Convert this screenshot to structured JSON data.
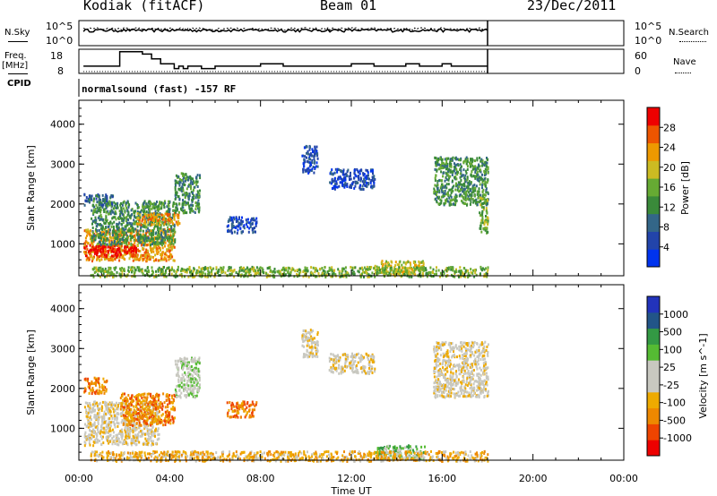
{
  "header": {
    "station": "Kodiak (fitACF)",
    "beam": "Beam 01",
    "date": "23/Dec/2011"
  },
  "side_labels": {
    "nsky": "N.Sky",
    "freq": "Freq.",
    "mhz": "[MHz]",
    "cpid": "CPID",
    "nsearch": "N.Search",
    "nave": "Nave"
  },
  "cpid_text": "normalsound (fast) -157 RF",
  "colors": {
    "power": [
      "#0033ee",
      "#2244aa",
      "#336688",
      "#3a8a3a",
      "#66aa33",
      "#ccbb22",
      "#ee9900",
      "#ee5500",
      "#ee0000"
    ],
    "velocity": [
      "#ee0000",
      "#ee4400",
      "#ee8800",
      "#eeaa00",
      "#c8c8c0",
      "#c8c8c0",
      "#55bb33",
      "#339944",
      "#225588",
      "#2233bb"
    ]
  },
  "chart_data": [
    {
      "type": "line",
      "panel": "noise",
      "left_ticks": [
        "10^5",
        "10^0"
      ],
      "right_ticks": [
        "10^5",
        "10^0"
      ],
      "series": [
        {
          "name": "N.Sky",
          "x": [
            0.2,
            18
          ],
          "y": [
            1000,
            1000
          ]
        },
        {
          "name": "N.Search",
          "x": [
            0.2,
            18
          ],
          "y": [
            2000,
            2000
          ]
        }
      ]
    },
    {
      "type": "line",
      "panel": "frequency",
      "left_ticks": [
        "18",
        "8"
      ],
      "right_ticks": [
        "60",
        "0"
      ],
      "series": [
        {
          "name": "Freq.",
          "x": [
            0.2,
            0.8,
            1.6,
            1.8,
            2.8,
            3.2,
            3.6,
            4.2,
            4.4,
            4.6,
            4.8,
            5.4,
            6,
            7,
            8,
            9,
            10,
            11,
            12,
            13,
            14,
            14.4,
            15,
            16,
            16.4,
            17,
            18
          ],
          "y": [
            11,
            11,
            11,
            17,
            16,
            14,
            12,
            10,
            11,
            10,
            11,
            10,
            11,
            11,
            12,
            11,
            11,
            11,
            12,
            11,
            11,
            12,
            11,
            12,
            11,
            11,
            11
          ]
        }
      ]
    },
    {
      "type": "heatmap",
      "panel": "power",
      "xlabel": "",
      "ylabel": "Slant Range [km]",
      "xlim": [
        0,
        24
      ],
      "ylim": [
        200,
        4600
      ],
      "x_ticks": [
        "00:00",
        "04:00",
        "08:00",
        "12:00",
        "16:00",
        "20:00",
        "00:00"
      ],
      "y_ticks": [
        1000,
        2000,
        3000,
        4000
      ],
      "colorbar": {
        "label": "Power [dB]",
        "ticks": [
          4,
          8,
          12,
          16,
          20,
          24,
          28
        ]
      },
      "regions": [
        {
          "x": [
            0.2,
            4.2
          ],
          "y": [
            600,
            1400
          ],
          "level": 6
        },
        {
          "x": [
            0.2,
            2.5
          ],
          "y": [
            700,
            1000
          ],
          "level": 8
        },
        {
          "x": [
            0.5,
            4.2
          ],
          "y": [
            1000,
            2100
          ],
          "level": 3
        },
        {
          "x": [
            2.5,
            4.4
          ],
          "y": [
            1500,
            1800
          ],
          "level": 6
        },
        {
          "x": [
            0.2,
            1.5
          ],
          "y": [
            2000,
            2300
          ],
          "level": 2
        },
        {
          "x": [
            4.2,
            5.3
          ],
          "y": [
            1800,
            2800
          ],
          "level": 3
        },
        {
          "x": [
            6.5,
            7.8
          ],
          "y": [
            1300,
            1700
          ],
          "level": 1
        },
        {
          "x": [
            9.8,
            10.5
          ],
          "y": [
            2800,
            3500
          ],
          "level": 1
        },
        {
          "x": [
            11,
            13
          ],
          "y": [
            2400,
            2900
          ],
          "level": 1
        },
        {
          "x": [
            15.6,
            18
          ],
          "y": [
            2000,
            3200
          ],
          "level": 3
        },
        {
          "x": [
            17.6,
            18
          ],
          "y": [
            1300,
            2200
          ],
          "level": 4
        },
        {
          "x": [
            13,
            15.2
          ],
          "y": [
            250,
            600
          ],
          "level": 5
        },
        {
          "x": [
            0.5,
            18
          ],
          "y": [
            200,
            450
          ],
          "level": 4
        }
      ]
    },
    {
      "type": "heatmap",
      "panel": "velocity",
      "xlabel": "Time UT",
      "ylabel": "Slant Range [km]",
      "xlim": [
        0,
        24
      ],
      "ylim": [
        200,
        4600
      ],
      "x_ticks": [
        "00:00",
        "04:00",
        "08:00",
        "12:00",
        "16:00",
        "20:00",
        "00:00"
      ],
      "y_ticks": [
        1000,
        2000,
        3000,
        4000
      ],
      "colorbar": {
        "label": "Velocity [m s^-1]",
        "ticks": [
          -1000,
          -500,
          -100,
          -25,
          25,
          100,
          500,
          1000
        ]
      },
      "regions": [
        {
          "x": [
            0.2,
            3.5
          ],
          "y": [
            600,
            1700
          ],
          "level": 4
        },
        {
          "x": [
            0.2,
            1.2
          ],
          "y": [
            1900,
            2300
          ],
          "level": 2
        },
        {
          "x": [
            1.8,
            4.2
          ],
          "y": [
            1100,
            1900
          ],
          "level": 2
        },
        {
          "x": [
            4.2,
            5.3
          ],
          "y": [
            1800,
            2800
          ],
          "level": 5
        },
        {
          "x": [
            6.5,
            7.8
          ],
          "y": [
            1300,
            1700
          ],
          "level": 2
        },
        {
          "x": [
            9.8,
            10.5
          ],
          "y": [
            2800,
            3500
          ],
          "level": 4
        },
        {
          "x": [
            11,
            13
          ],
          "y": [
            2400,
            2900
          ],
          "level": 4
        },
        {
          "x": [
            15.6,
            18
          ],
          "y": [
            1800,
            3200
          ],
          "level": 4
        },
        {
          "x": [
            13,
            15.2
          ],
          "y": [
            250,
            600
          ],
          "level": 6
        },
        {
          "x": [
            0.5,
            18
          ],
          "y": [
            200,
            450
          ],
          "level": 3
        }
      ]
    }
  ]
}
